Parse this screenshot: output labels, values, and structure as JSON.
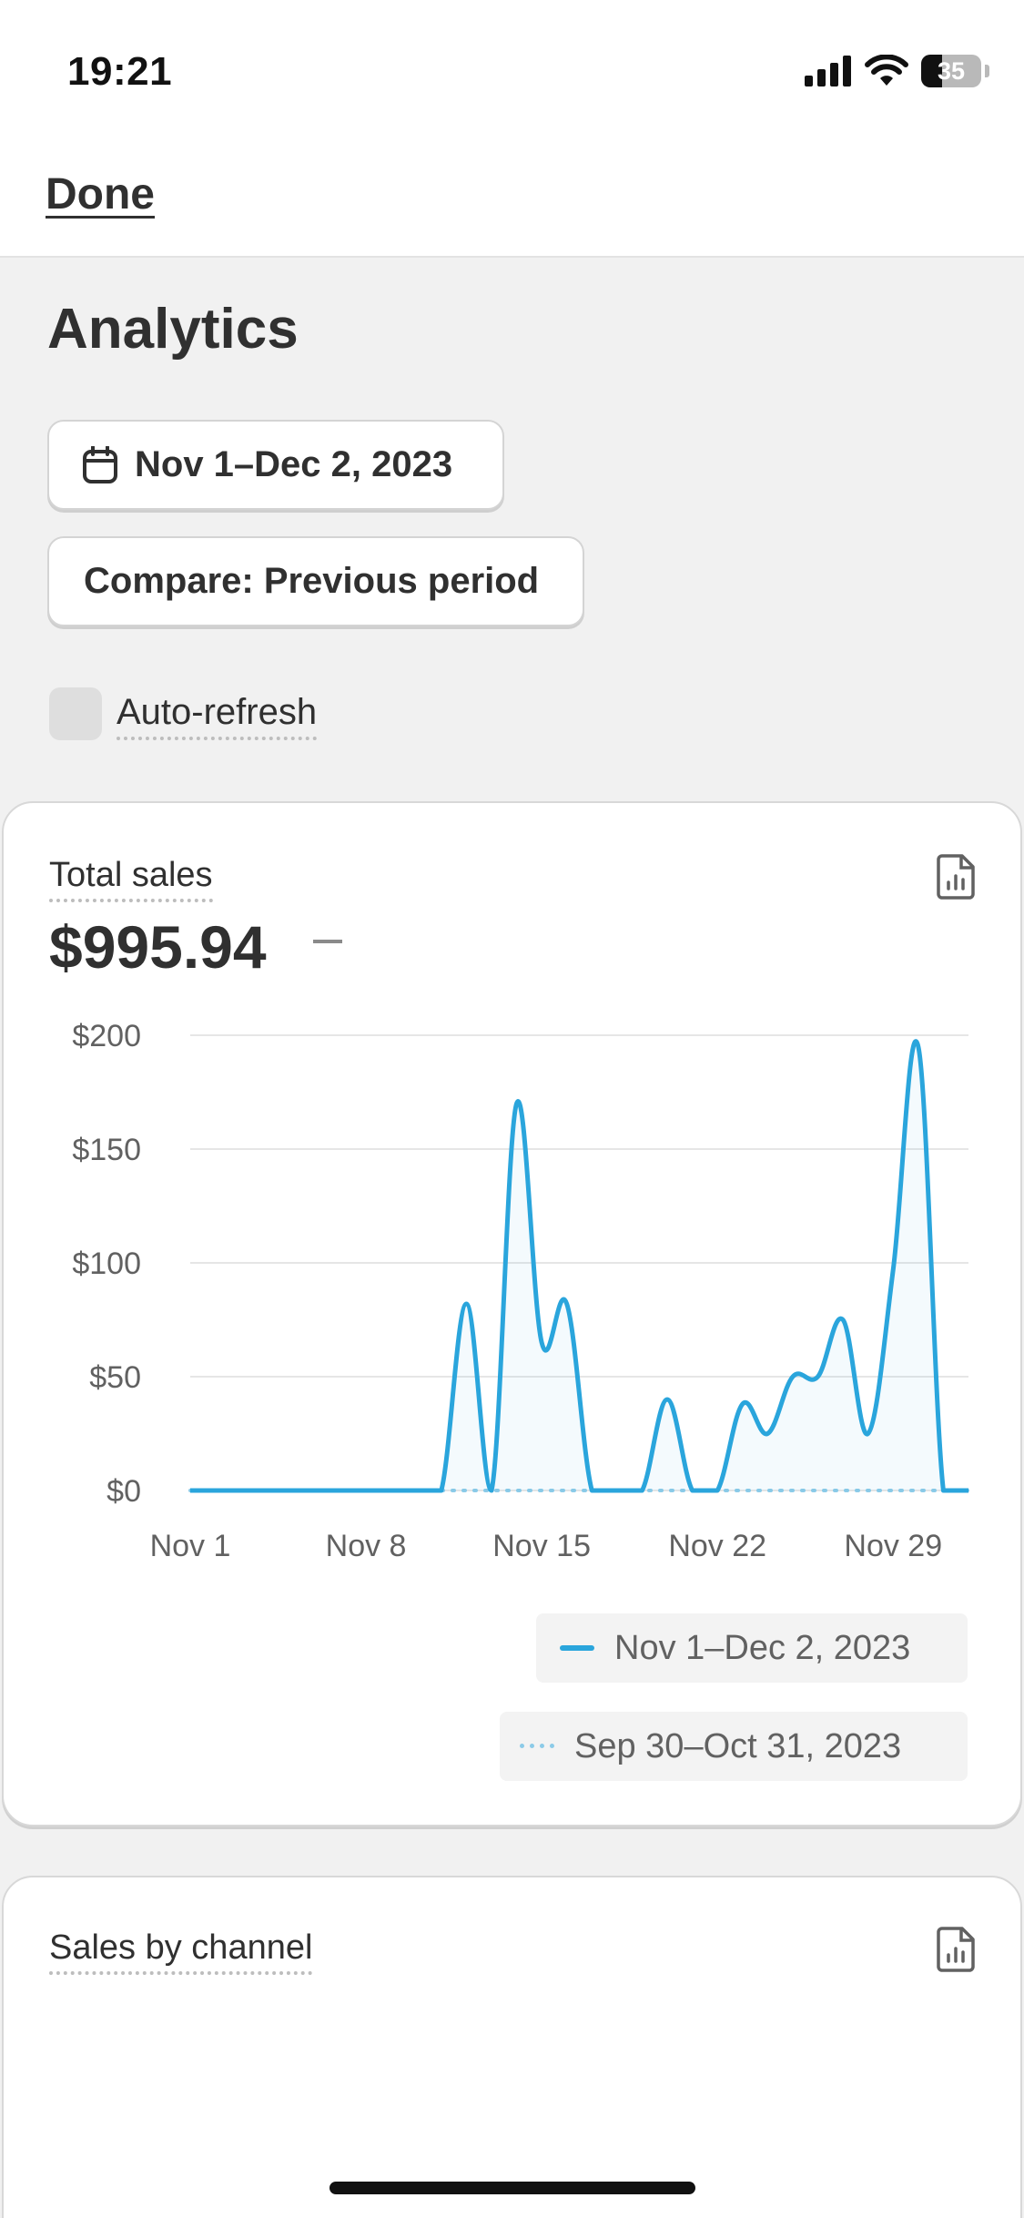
{
  "status_bar": {
    "time": "19:21",
    "battery": "35",
    "battery_level": 0.35
  },
  "nav": {
    "done_label": "Done"
  },
  "page": {
    "title": "Analytics"
  },
  "filters": {
    "date_range": "Nov 1–Dec 2, 2023",
    "compare": "Compare: Previous period",
    "auto_refresh_label": "Auto-refresh",
    "auto_refresh_checked": false
  },
  "total_sales": {
    "title": "Total sales",
    "value": "$995.94",
    "legend": {
      "current": "Nov 1–Dec 2, 2023",
      "previous": "Sep 30–Oct 31, 2023"
    }
  },
  "sales_by_channel": {
    "title": "Sales by channel"
  },
  "icons": {
    "date": "calendar-icon",
    "report": "report-chart-icon",
    "signal": "cellular-signal-icon",
    "wifi": "wifi-icon",
    "battery": "battery-icon"
  },
  "colors": {
    "series_current": "#2aa5dc",
    "series_previous": "#8ccbe8"
  },
  "chart_data": {
    "type": "line",
    "title": "",
    "xlabel": "",
    "ylabel": "",
    "ylim": [
      0,
      200
    ],
    "yticks": [
      "$0",
      "$50",
      "$100",
      "$150",
      "$200"
    ],
    "ytick_values": [
      0,
      50,
      100,
      150,
      200
    ],
    "xticks": [
      "Nov 1",
      "Nov 8",
      "Nov 15",
      "Nov 22",
      "Nov 29"
    ],
    "xtick_days": [
      1,
      8,
      15,
      22,
      29
    ],
    "x_range": [
      1,
      32
    ],
    "grid": true,
    "legend": "bottom-right",
    "series": [
      {
        "name": "Nov 1–Dec 2, 2023",
        "style": "solid",
        "x": [
          1,
          2,
          3,
          4,
          5,
          6,
          7,
          8,
          9,
          10,
          11,
          12,
          13,
          14,
          15,
          16,
          17,
          18,
          19,
          20,
          21,
          22,
          23,
          24,
          25,
          26,
          27,
          28,
          29,
          30,
          31,
          32
        ],
        "values": [
          0,
          0,
          0,
          0,
          0,
          0,
          0,
          0,
          0,
          0,
          0,
          82,
          0,
          170,
          65,
          82,
          0,
          0,
          0,
          40,
          0,
          0,
          38,
          25,
          50,
          50,
          75,
          25,
          97,
          195,
          0,
          0
        ]
      },
      {
        "name": "Sep 30–Oct 31, 2023",
        "style": "dotted",
        "x": [
          1,
          32
        ],
        "values": [
          0,
          0
        ]
      }
    ]
  }
}
